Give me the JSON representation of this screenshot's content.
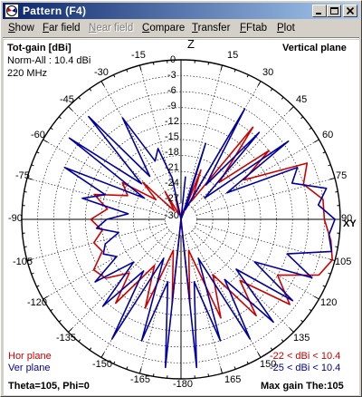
{
  "window": {
    "title": "Pattern   (F4)"
  },
  "menu": [
    {
      "label": "Show",
      "ul": "S",
      "rest": "how",
      "enabled": true
    },
    {
      "label": "Far field",
      "ul": "F",
      "rest": "ar field",
      "enabled": true
    },
    {
      "label": "Near field",
      "ul": "N",
      "rest": "ear field",
      "enabled": false
    },
    {
      "label": "Compare",
      "ul": "C",
      "rest": "ompare",
      "enabled": true
    },
    {
      "label": "Transfer",
      "ul": "T",
      "rest": "ransfer",
      "enabled": true
    },
    {
      "label": "FFtab",
      "ul": "F",
      "rest": "Ftab",
      "enabled": true
    },
    {
      "label": "Plot",
      "ul": "P",
      "rest": "lot",
      "enabled": true
    }
  ],
  "plot": {
    "gain_title": "Tot-gain [dBi]",
    "norm_label": "Norm-All : 10.4 dBi",
    "frequency": "220 MHz",
    "plane_label": "Vertical plane",
    "axis_z": "Z",
    "axis_xy": "XY",
    "angle_labels": [
      "-15",
      "15",
      "-30",
      "30",
      "-45",
      "45",
      "-60",
      "60",
      "-75",
      "75",
      "-90",
      "90",
      "-105",
      "105",
      "-120",
      "120",
      "-135",
      "135",
      "-150",
      "150",
      "-165",
      "165",
      "-180"
    ],
    "radial_labels": [
      "0",
      "-3",
      "-6",
      "-9",
      "-12",
      "-15",
      "-18",
      "-21",
      "-24",
      "-27",
      "-30"
    ],
    "legend_hor": "Hor plane",
    "legend_ver": "Ver plane",
    "range_hor": "-22 < dBi < 10.4",
    "range_ver": "-25 < dBi < 10.4",
    "status_left": "Theta=105, Phi=0",
    "status_right": "Max gain The:105"
  },
  "colors": {
    "hor_plane": "#cc0000",
    "ver_plane": "#0000a0",
    "grid": "#000000",
    "titlebar_start": "#0a246a",
    "titlebar_end": "#a6caf0"
  },
  "chart_data": {
    "type": "polar",
    "title": "Tot-gain [dBi]",
    "plane": "Vertical plane",
    "angle_unit": "deg",
    "rlim": [
      -30,
      0
    ],
    "normalization_dbi": 10.4,
    "series": [
      {
        "name": "Hor plane",
        "angles": [
          0,
          8,
          14,
          22,
          30,
          38,
          46,
          52,
          58,
          66,
          74,
          82,
          90,
          98,
          105,
          112,
          120,
          128,
          136,
          142,
          150,
          158,
          166,
          174,
          180,
          -174,
          -166,
          -158,
          -150,
          -142,
          -136,
          -128,
          -120,
          -112,
          -105,
          -98,
          -90,
          -82,
          -74,
          -66,
          -58,
          -52,
          -46,
          -38,
          -30,
          -22,
          -14,
          -8
        ],
        "values": [
          -30,
          -28,
          -30,
          -20,
          -26,
          -8,
          -20,
          -9,
          -16,
          -4,
          -6,
          -3,
          -3,
          -1.5,
          -0.5,
          -2,
          -9,
          -4,
          -14,
          -7,
          -18,
          -10,
          -24,
          -14,
          -30,
          -14,
          -24,
          -12,
          -20,
          -10,
          -16,
          -12,
          -11,
          -14,
          -13,
          -15,
          -13,
          -16,
          -13,
          -19,
          -17,
          -24,
          -20,
          -28,
          -24,
          -29,
          -26,
          -29
        ]
      },
      {
        "name": "Ver plane",
        "angles": [
          0,
          6,
          12,
          18,
          24,
          30,
          36,
          42,
          48,
          54,
          60,
          66,
          72,
          78,
          84,
          90,
          96,
          102,
          108,
          114,
          120,
          126,
          132,
          138,
          144,
          150,
          156,
          162,
          168,
          174,
          180,
          -174,
          -168,
          -162,
          -156,
          -150,
          -144,
          -138,
          -132,
          -126,
          -120,
          -114,
          -108,
          -102,
          -96,
          -90,
          -84,
          -78,
          -72,
          -66,
          -60,
          -54,
          -48,
          -42,
          -36,
          -30,
          -24,
          -18,
          -12,
          -6
        ],
        "values": [
          -30,
          -22,
          -30,
          -15,
          -28,
          -6,
          -22,
          -8,
          -24,
          -5,
          -20,
          -6,
          -8,
          -2,
          -4,
          -1,
          -2,
          -1,
          -9,
          -3,
          -14,
          -4,
          -16,
          -4,
          -16,
          -4,
          -22,
          -6,
          -18,
          -2,
          -30,
          -2,
          -18,
          -6,
          -22,
          -4,
          -18,
          -8,
          -18,
          -10,
          -16,
          -14,
          -15,
          -18,
          -14,
          -16,
          -20,
          -11,
          -15,
          -6,
          -22,
          -4,
          -20,
          -4,
          -20,
          -8,
          -18,
          -16,
          -22,
          -30
        ]
      }
    ]
  }
}
